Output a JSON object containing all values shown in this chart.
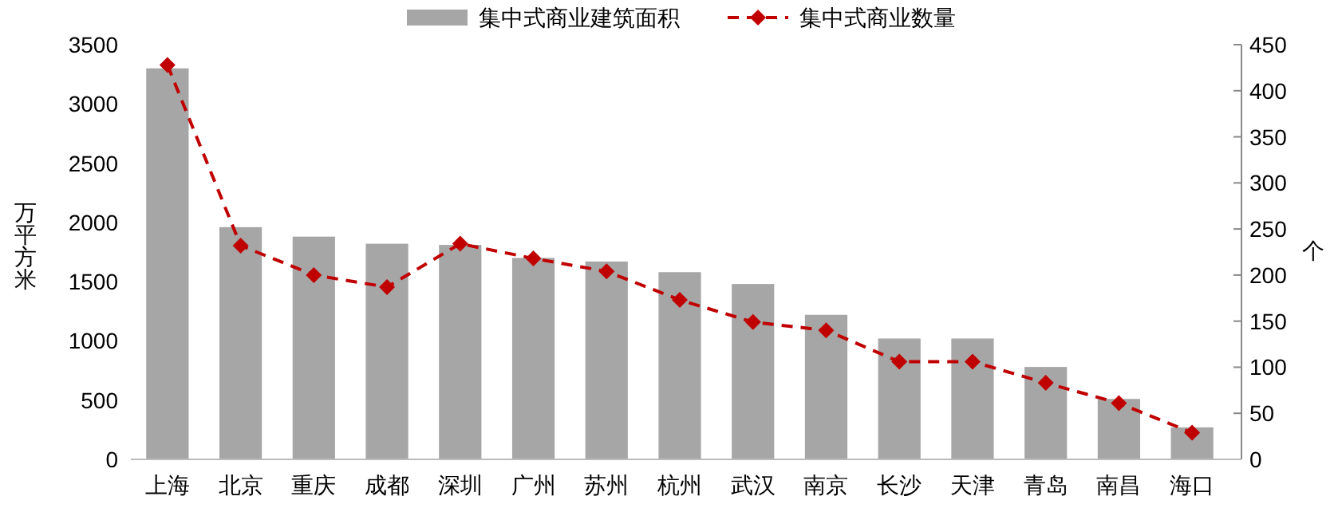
{
  "chart_data": {
    "type": "bar",
    "ylabel": "万平方米",
    "y2label": "个",
    "legend": "top",
    "categories": [
      "上海",
      "北京",
      "重庆",
      "成都",
      "深圳",
      "广州",
      "苏州",
      "杭州",
      "武汉",
      "南京",
      "长沙",
      "天津",
      "青岛",
      "南昌",
      "海口"
    ],
    "series": [
      {
        "name": "集中式商业建筑面积",
        "color": "#a6a6a6",
        "values": [
          3300,
          1960,
          1880,
          1820,
          1810,
          1700,
          1670,
          1580,
          1480,
          1220,
          1020,
          1020,
          780,
          510,
          270
        ]
      },
      {
        "name": "集中式商业数量",
        "type": "line",
        "axis": "y2",
        "color": "#c00000",
        "marker": "diamond",
        "line_style": "dashed",
        "values": [
          428,
          232,
          200,
          187,
          234,
          218,
          204,
          173,
          149,
          140,
          106,
          106,
          83,
          61,
          29
        ]
      }
    ],
    "ylim": [
      0,
      3500
    ],
    "yticks": [
      0,
      500,
      1000,
      1500,
      2000,
      2500,
      3000,
      3500
    ],
    "y2lim": [
      0,
      450
    ],
    "y2ticks": [
      0,
      50,
      100,
      150,
      200,
      250,
      300,
      350,
      400,
      450
    ]
  }
}
